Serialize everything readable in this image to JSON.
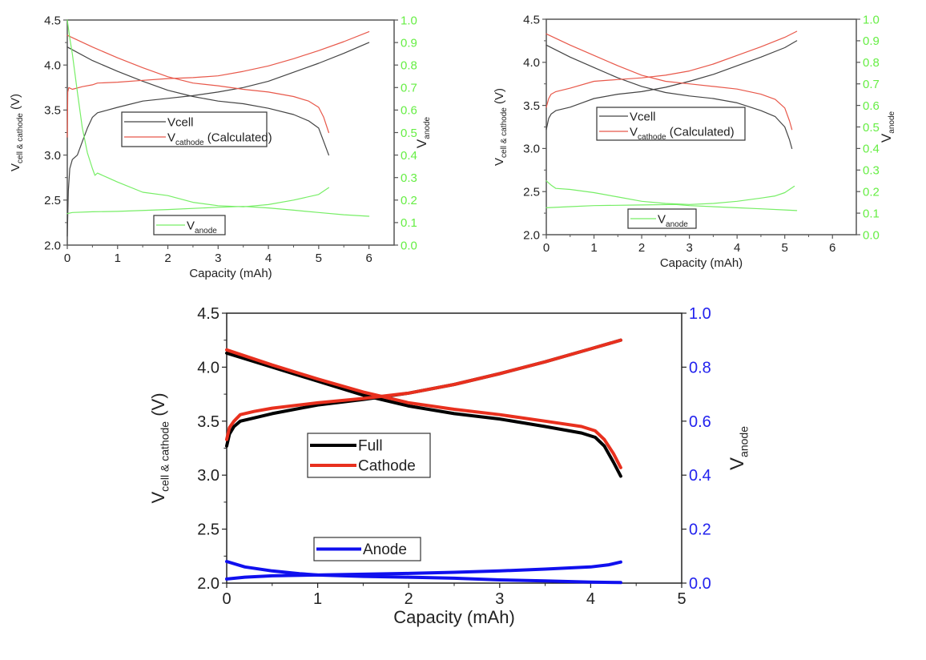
{
  "chart_data": [
    {
      "id": "top-left",
      "type": "line",
      "xlabel": "Capacity (mAh)",
      "ylabel": {
        "main": "V",
        "sub": "cell & cathode",
        "suffix": " (V)"
      },
      "y2label": {
        "main": "V",
        "sub": "anode"
      },
      "xlim": [
        0,
        6.5
      ],
      "ylim": [
        2.0,
        4.5
      ],
      "y2lim": [
        0.0,
        1.0
      ],
      "xticks": [
        "0",
        "1",
        "2",
        "3",
        "4",
        "5",
        "6"
      ],
      "xtick_values": [
        0,
        1,
        2,
        3,
        4,
        5,
        6
      ],
      "yticks": [
        "2.0",
        "2.5",
        "3.0",
        "3.5",
        "4.0",
        "4.5"
      ],
      "ytick_values": [
        2.0,
        2.5,
        3.0,
        3.5,
        4.0,
        4.5
      ],
      "y2ticks": [
        "0.0",
        "0.1",
        "0.2",
        "0.3",
        "0.4",
        "0.5",
        "0.6",
        "0.7",
        "0.8",
        "0.9",
        "1.0"
      ],
      "y2tick_values": [
        0.0,
        0.1,
        0.2,
        0.3,
        0.4,
        0.5,
        0.6,
        0.7,
        0.8,
        0.9,
        1.0
      ],
      "y2_color": "#66ee44",
      "grid": false,
      "legends": [
        {
          "placement": "center-left",
          "entries": [
            {
              "label": "Vcell",
              "main": "Vcell",
              "sub": "",
              "suffix": "",
              "color": "#444444"
            },
            {
              "label": "Vcathode (Calculated)",
              "main": "V",
              "sub": "cathode",
              "suffix": " (Calculated)",
              "color": "#e8584a"
            }
          ]
        },
        {
          "placement": "bottom-center",
          "entries": [
            {
              "label": "Vanode",
              "main": "V",
              "sub": "anode",
              "suffix": "",
              "color": "#77ee66"
            }
          ]
        }
      ],
      "series": [
        {
          "name": "Vcell charge",
          "axis": "y",
          "color": "#444444",
          "x": [
            0,
            0.02,
            0.05,
            0.1,
            0.2,
            0.3,
            0.4,
            0.5,
            0.6,
            0.8,
            1.0,
            1.5,
            2.0,
            2.5,
            3.0,
            3.5,
            4.0,
            4.5,
            5.0,
            5.5,
            6.0
          ],
          "y": [
            2.1,
            2.6,
            2.85,
            2.95,
            3.0,
            3.15,
            3.3,
            3.42,
            3.47,
            3.5,
            3.53,
            3.6,
            3.63,
            3.66,
            3.7,
            3.75,
            3.82,
            3.92,
            4.02,
            4.13,
            4.25
          ]
        },
        {
          "name": "Vcell discharge",
          "axis": "y",
          "color": "#444444",
          "x": [
            0,
            0.5,
            1.0,
            1.5,
            2.0,
            2.5,
            3.0,
            3.5,
            4.0,
            4.5,
            4.8,
            5.0,
            5.1,
            5.2
          ],
          "y": [
            4.2,
            4.05,
            3.93,
            3.82,
            3.72,
            3.65,
            3.6,
            3.57,
            3.52,
            3.45,
            3.38,
            3.3,
            3.15,
            3.0
          ]
        },
        {
          "name": "Vcathode charge",
          "axis": "y",
          "color": "#e8584a",
          "x": [
            0,
            0.01,
            0.03,
            0.1,
            0.3,
            0.5,
            0.6,
            1.0,
            1.5,
            2.0,
            2.5,
            3.0,
            3.5,
            4.0,
            4.5,
            5.0,
            5.5,
            6.0
          ],
          "y": [
            3.2,
            3.7,
            3.75,
            3.73,
            3.76,
            3.78,
            3.8,
            3.81,
            3.83,
            3.85,
            3.86,
            3.88,
            3.93,
            3.99,
            4.07,
            4.16,
            4.26,
            4.37
          ]
        },
        {
          "name": "Vcathode discharge",
          "axis": "y",
          "color": "#e8584a",
          "x": [
            0,
            0.5,
            1.0,
            1.5,
            2.0,
            2.5,
            3.0,
            3.5,
            4.0,
            4.5,
            4.8,
            5.0,
            5.1,
            5.2
          ],
          "y": [
            4.33,
            4.2,
            4.08,
            3.97,
            3.87,
            3.8,
            3.77,
            3.73,
            3.7,
            3.65,
            3.6,
            3.53,
            3.42,
            3.25
          ]
        },
        {
          "name": "Vanode lithiation",
          "axis": "y2",
          "color": "#77ee66",
          "x": [
            0,
            0.05,
            0.1,
            0.2,
            0.3,
            0.4,
            0.5,
            0.55,
            0.6,
            0.8,
            1.0,
            1.5,
            2.0,
            2.5,
            3.0,
            3.5,
            4.0,
            4.5,
            5.0,
            5.2
          ],
          "y": [
            1.0,
            0.92,
            0.85,
            0.68,
            0.52,
            0.41,
            0.34,
            0.31,
            0.32,
            0.3,
            0.28,
            0.235,
            0.22,
            0.19,
            0.175,
            0.17,
            0.18,
            0.2,
            0.225,
            0.255
          ]
        },
        {
          "name": "Vanode delithiation",
          "axis": "y2",
          "color": "#77ee66",
          "x": [
            0,
            0.1,
            0.5,
            1.0,
            2.0,
            3.0,
            3.5,
            4.0,
            4.5,
            5.0,
            5.5,
            6.0
          ],
          "y": [
            0.14,
            0.145,
            0.148,
            0.15,
            0.158,
            0.168,
            0.172,
            0.165,
            0.155,
            0.145,
            0.135,
            0.128
          ]
        }
      ]
    },
    {
      "id": "top-right",
      "type": "line",
      "xlabel": "Capacity (mAh)",
      "ylabel": {
        "main": "V",
        "sub": "cell & cathode",
        "suffix": " (V)"
      },
      "y2label": {
        "main": "V",
        "sub": "anode"
      },
      "xlim": [
        0,
        6.5
      ],
      "ylim": [
        2.0,
        4.5
      ],
      "y2lim": [
        0.0,
        1.0
      ],
      "xticks": [
        "0",
        "1",
        "2",
        "3",
        "4",
        "5",
        "6"
      ],
      "xtick_values": [
        0,
        1,
        2,
        3,
        4,
        5,
        6
      ],
      "yticks": [
        "2.0",
        "2.5",
        "3.0",
        "3.5",
        "4.0",
        "4.5"
      ],
      "ytick_values": [
        2.0,
        2.5,
        3.0,
        3.5,
        4.0,
        4.5
      ],
      "y2ticks": [
        "0.0",
        "0.1",
        "0.2",
        "0.3",
        "0.4",
        "0.5",
        "0.6",
        "0.7",
        "0.8",
        "0.9",
        "1.0"
      ],
      "y2tick_values": [
        0.0,
        0.1,
        0.2,
        0.3,
        0.4,
        0.5,
        0.6,
        0.7,
        0.8,
        0.9,
        1.0
      ],
      "y2_color": "#66ee44",
      "grid": false,
      "legends": [
        {
          "placement": "center-left",
          "entries": [
            {
              "label": "Vcell",
              "main": "Vcell",
              "sub": "",
              "suffix": "",
              "color": "#444444"
            },
            {
              "label": "Vcathode (Calculated)",
              "main": "V",
              "sub": "cathode",
              "suffix": " (Calculated)",
              "color": "#e8584a"
            }
          ]
        },
        {
          "placement": "bottom-center",
          "entries": [
            {
              "label": "Vanode",
              "main": "V",
              "sub": "anode",
              "suffix": "",
              "color": "#77ee66"
            }
          ]
        }
      ],
      "series": [
        {
          "name": "Vcell charge",
          "axis": "y",
          "color": "#444444",
          "x": [
            0,
            0.05,
            0.1,
            0.2,
            0.5,
            1.0,
            1.5,
            2.0,
            2.5,
            3.0,
            3.5,
            4.0,
            4.5,
            5.0,
            5.25
          ],
          "y": [
            3.22,
            3.35,
            3.4,
            3.44,
            3.48,
            3.58,
            3.63,
            3.66,
            3.71,
            3.78,
            3.86,
            3.96,
            4.06,
            4.17,
            4.25
          ]
        },
        {
          "name": "Vcell discharge",
          "axis": "y",
          "color": "#444444",
          "x": [
            0,
            0.5,
            1.0,
            1.5,
            2.0,
            2.5,
            3.0,
            3.5,
            4.0,
            4.5,
            4.8,
            5.0,
            5.1,
            5.15
          ],
          "y": [
            4.2,
            4.06,
            3.94,
            3.82,
            3.72,
            3.65,
            3.61,
            3.58,
            3.53,
            3.44,
            3.37,
            3.25,
            3.1,
            3.0
          ]
        },
        {
          "name": "Vcathode charge",
          "axis": "y",
          "color": "#e8584a",
          "x": [
            0,
            0.05,
            0.1,
            0.2,
            0.5,
            1.0,
            1.5,
            2.0,
            2.5,
            3.0,
            3.5,
            4.0,
            4.5,
            5.0,
            5.25
          ],
          "y": [
            3.48,
            3.58,
            3.63,
            3.66,
            3.7,
            3.78,
            3.8,
            3.82,
            3.85,
            3.9,
            3.98,
            4.08,
            4.18,
            4.29,
            4.36
          ]
        },
        {
          "name": "Vcathode discharge",
          "axis": "y",
          "color": "#e8584a",
          "x": [
            0,
            0.5,
            1.0,
            1.5,
            2.0,
            2.5,
            3.0,
            3.5,
            4.0,
            4.5,
            4.8,
            5.0,
            5.1,
            5.15
          ],
          "y": [
            4.33,
            4.2,
            4.08,
            3.96,
            3.85,
            3.78,
            3.75,
            3.72,
            3.69,
            3.63,
            3.57,
            3.47,
            3.32,
            3.22
          ]
        },
        {
          "name": "Vanode lithiation",
          "axis": "y2",
          "color": "#77ee66",
          "x": [
            0,
            0.1,
            0.2,
            0.5,
            1.0,
            1.5,
            2.0,
            2.5,
            3.0,
            3.5,
            4.0,
            4.5,
            4.8,
            5.0,
            5.2
          ],
          "y": [
            0.25,
            0.23,
            0.215,
            0.21,
            0.195,
            0.175,
            0.155,
            0.145,
            0.14,
            0.145,
            0.155,
            0.17,
            0.18,
            0.195,
            0.225
          ]
        },
        {
          "name": "Vanode delithiation",
          "axis": "y2",
          "color": "#77ee66",
          "x": [
            0,
            0.5,
            1.0,
            2.0,
            2.7,
            3.0,
            4.0,
            4.5,
            5.0,
            5.25
          ],
          "y": [
            0.125,
            0.13,
            0.135,
            0.138,
            0.14,
            0.135,
            0.125,
            0.12,
            0.115,
            0.112
          ]
        }
      ]
    },
    {
      "id": "bottom",
      "type": "line",
      "xlabel": "Capacity (mAh)",
      "ylabel": {
        "main": "V",
        "sub": "cell & cathode",
        "suffix": " (V)"
      },
      "y2label": {
        "main": "V",
        "sub": "anode"
      },
      "xlim": [
        0,
        5
      ],
      "ylim": [
        2.0,
        4.5
      ],
      "y2lim": [
        0.0,
        1.0
      ],
      "xticks": [
        "0",
        "1",
        "2",
        "3",
        "4",
        "5"
      ],
      "xtick_values": [
        0,
        1,
        2,
        3,
        4,
        5
      ],
      "yticks": [
        "2.0",
        "2.5",
        "3.0",
        "3.5",
        "4.0",
        "4.5"
      ],
      "ytick_values": [
        2.0,
        2.5,
        3.0,
        3.5,
        4.0,
        4.5
      ],
      "y2ticks": [
        "0.0",
        "0.2",
        "0.4",
        "0.6",
        "0.8",
        "1.0"
      ],
      "y2tick_values": [
        0.0,
        0.2,
        0.4,
        0.6,
        0.8,
        1.0
      ],
      "y2_color": "#2222ee",
      "grid": false,
      "legends": [
        {
          "placement": "center-left",
          "entries": [
            {
              "label": "Full",
              "main": "Full",
              "sub": "",
              "suffix": "",
              "color": "#000000"
            },
            {
              "label": "Cathode",
              "main": "Cathode",
              "sub": "",
              "suffix": "",
              "color": "#e8301e"
            }
          ]
        },
        {
          "placement": "bottom-left",
          "entries": [
            {
              "label": "Anode",
              "main": "Anode",
              "sub": "",
              "suffix": "",
              "color": "#1010ee"
            }
          ]
        }
      ],
      "series": [
        {
          "name": "Full charge",
          "axis": "y",
          "color": "#000000",
          "x": [
            0,
            0.03,
            0.08,
            0.15,
            0.3,
            0.5,
            1.0,
            1.5,
            2.0,
            2.5,
            3.0,
            3.5,
            4.0,
            4.33
          ],
          "y": [
            3.27,
            3.38,
            3.45,
            3.5,
            3.53,
            3.57,
            3.65,
            3.7,
            3.76,
            3.84,
            3.94,
            4.05,
            4.17,
            4.25
          ]
        },
        {
          "name": "Full discharge",
          "axis": "y",
          "color": "#000000",
          "x": [
            0,
            0.5,
            1.0,
            1.5,
            2.0,
            2.5,
            3.0,
            3.5,
            3.9,
            4.05,
            4.15,
            4.25,
            4.33
          ],
          "y": [
            4.13,
            4.0,
            3.87,
            3.74,
            3.64,
            3.57,
            3.52,
            3.45,
            3.39,
            3.35,
            3.27,
            3.12,
            2.99
          ]
        },
        {
          "name": "Cathode charge",
          "axis": "y",
          "color": "#e8301e",
          "x": [
            0,
            0.03,
            0.08,
            0.15,
            0.3,
            0.5,
            1.0,
            1.5,
            2.0,
            2.5,
            3.0,
            3.5,
            4.0,
            4.33
          ],
          "y": [
            3.33,
            3.44,
            3.5,
            3.56,
            3.59,
            3.62,
            3.67,
            3.71,
            3.76,
            3.84,
            3.94,
            4.05,
            4.17,
            4.25
          ]
        },
        {
          "name": "Cathode discharge",
          "axis": "y",
          "color": "#e8301e",
          "x": [
            0,
            0.5,
            1.0,
            1.5,
            2.0,
            2.5,
            3.0,
            3.5,
            3.9,
            4.05,
            4.15,
            4.25,
            4.33
          ],
          "y": [
            4.16,
            4.02,
            3.89,
            3.77,
            3.67,
            3.61,
            3.56,
            3.5,
            3.45,
            3.41,
            3.33,
            3.2,
            3.07
          ]
        },
        {
          "name": "Anode lithiation",
          "axis": "y2",
          "color": "#1010ee",
          "x": [
            0,
            0.2,
            0.5,
            0.8,
            1.0,
            1.5,
            2.0,
            2.5,
            3.0,
            3.5,
            4.0,
            4.33
          ],
          "y": [
            0.08,
            0.06,
            0.045,
            0.035,
            0.03,
            0.025,
            0.022,
            0.018,
            0.012,
            0.008,
            0.004,
            0.002
          ]
        },
        {
          "name": "Anode delithiation",
          "axis": "y2",
          "color": "#1010ee",
          "x": [
            0,
            0.2,
            0.5,
            1.0,
            1.5,
            2.0,
            2.5,
            3.0,
            3.5,
            4.0,
            4.2,
            4.33
          ],
          "y": [
            0.015,
            0.022,
            0.027,
            0.03,
            0.033,
            0.036,
            0.04,
            0.045,
            0.052,
            0.06,
            0.068,
            0.078
          ]
        }
      ]
    }
  ]
}
